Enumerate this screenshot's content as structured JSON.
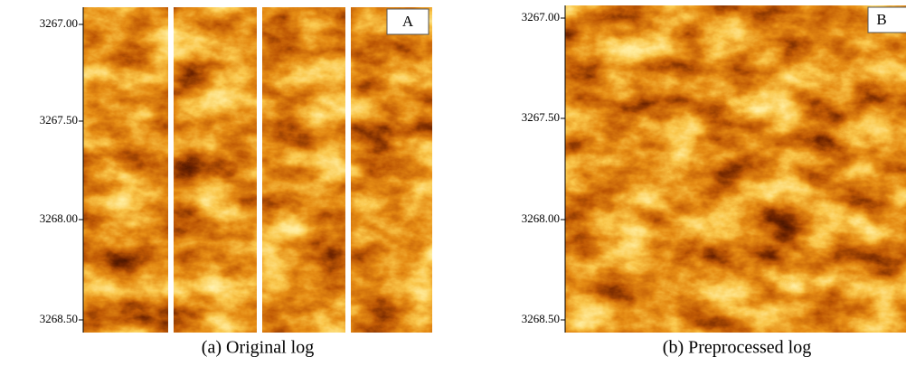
{
  "panels": [
    {
      "label": "A",
      "caption": "(a) Original log",
      "depth_ticks": [
        "3267.00",
        "3267.50",
        "3268.00",
        "3268.50"
      ]
    },
    {
      "label": "B",
      "caption": "(b) Preprocessed log",
      "depth_ticks": [
        "3267.00",
        "3267.50",
        "3268.00",
        "3268.50"
      ]
    }
  ]
}
